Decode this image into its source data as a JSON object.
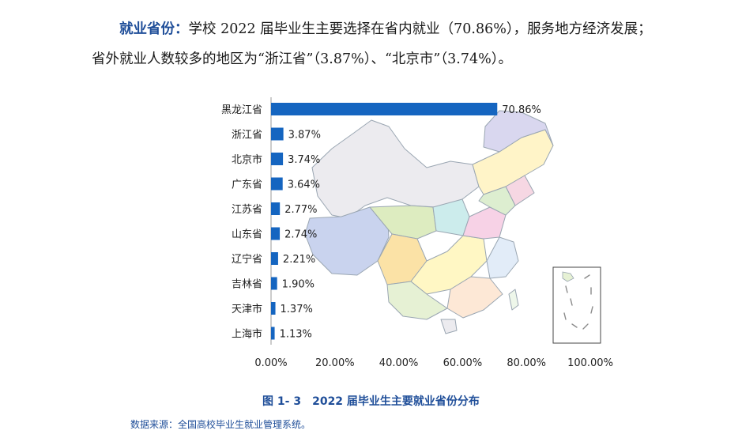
{
  "intro": {
    "lead": "就业省份：",
    "text": "学校 2022 届毕业生主要选择在省内就业（70.86%），服务地方经济发展；省外就业人数较多的地区为“浙江省”（3.87%）、“北京市”（3.74%）。"
  },
  "chart_data": {
    "type": "bar",
    "orientation": "horizontal",
    "categories": [
      "黑龙江省",
      "浙江省",
      "北京市",
      "广东省",
      "江苏省",
      "山东省",
      "辽宁省",
      "吉林省",
      "天津市",
      "上海市"
    ],
    "values": [
      70.86,
      3.87,
      3.74,
      3.64,
      2.77,
      2.74,
      2.21,
      1.9,
      1.37,
      1.13
    ],
    "value_labels": [
      "70.86%",
      "3.87%",
      "3.74%",
      "3.64%",
      "2.77%",
      "2.74%",
      "2.21%",
      "1.90%",
      "1.37%",
      "1.13%"
    ],
    "xlim": [
      0,
      100
    ],
    "xticks": [
      "0.00%",
      "20.00%",
      "40.00%",
      "60.00%",
      "80.00%",
      "100.00%"
    ],
    "bar_color": "#1565c0",
    "grid": false,
    "background": "map of China"
  },
  "caption": "图 1- 3　2022 届毕业生主要就业省份分布",
  "source": "数据来源：全国高校毕业生就业管理系统。"
}
